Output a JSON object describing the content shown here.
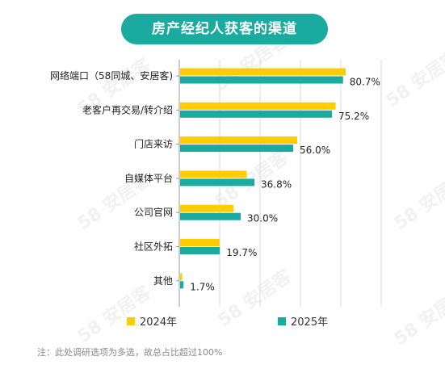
{
  "title": "房产经纪人获客的渠道",
  "watermark_text": "58 安居客",
  "colors": {
    "series_2024": "#ffcc00",
    "series_2025": "#1aaa9f",
    "title_bg": "#1aaa9f",
    "grid": "#d9d9d9",
    "axis": "#999999"
  },
  "footnote": "注：此处调研选项为多选，故总占比超过100%",
  "legend": [
    {
      "label": "2024年",
      "color": "#ffcc00"
    },
    {
      "label": "2025年",
      "color": "#1aaa9f"
    }
  ],
  "chart_data": {
    "type": "bar",
    "orientation": "horizontal",
    "title": "房产经纪人获客的渠道",
    "categories": [
      "网络端口（58同城、安居客)",
      "老客户再交易/转介绍",
      "门店来访",
      "自媒体平台",
      "公司官网",
      "社区外拓",
      "其他"
    ],
    "series": [
      {
        "name": "2024年",
        "values": [
          82.0,
          77.0,
          58.0,
          33.0,
          26.5,
          19.5,
          1.0
        ]
      },
      {
        "name": "2025年",
        "values": [
          80.7,
          75.2,
          56.0,
          36.8,
          30.0,
          19.7,
          1.7
        ]
      }
    ],
    "data_labels": [
      "80.7%",
      "75.2%",
      "56.0%",
      "36.8%",
      "30.0%",
      "19.7%",
      "1.7%"
    ],
    "xlim": [
      0,
      100
    ],
    "grid": true,
    "legend_position": "bottom"
  }
}
